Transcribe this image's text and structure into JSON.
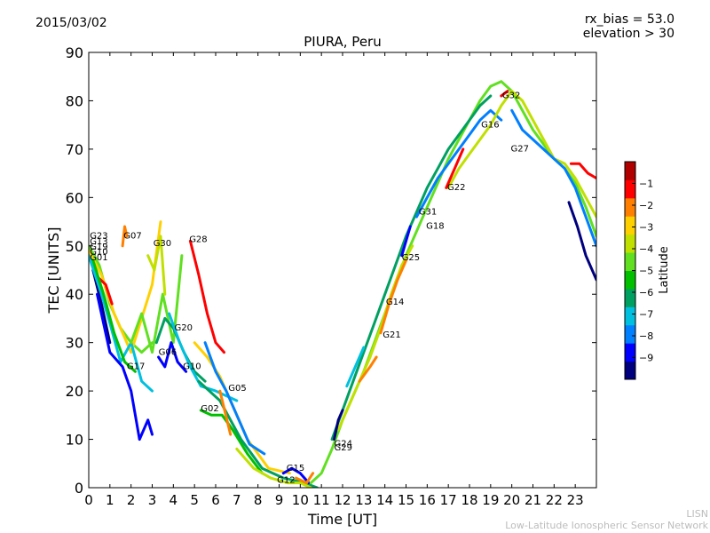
{
  "header": {
    "date": "2015/03/02",
    "rx_bias": "rx_bias = 53.0",
    "elevation": "elevation > 30"
  },
  "footer": {
    "line1": "LISN",
    "line2": "Low-Latitude Ionospheric Sensor Network"
  },
  "chart_data": {
    "type": "scatter",
    "title": "PIURA, Peru",
    "xlabel": "Time [UT]",
    "ylabel": "TEC [UNITS]",
    "xlim": [
      0,
      24
    ],
    "ylim": [
      0,
      90
    ],
    "xticks": [
      0,
      1,
      2,
      3,
      4,
      5,
      6,
      7,
      8,
      9,
      10,
      11,
      12,
      13,
      14,
      15,
      16,
      17,
      18,
      19,
      20,
      21,
      22,
      23
    ],
    "yticks": [
      0,
      10,
      20,
      30,
      40,
      50,
      60,
      70,
      80,
      90
    ],
    "colorbar": {
      "label": "Latitude",
      "ticks": [
        -1,
        -2,
        -3,
        -4,
        -5,
        -6,
        -7,
        -8,
        -9
      ],
      "range": [
        -10,
        0
      ],
      "colors": [
        "#00007f",
        "#0000ff",
        "#007fff",
        "#00c0e0",
        "#00a060",
        "#00c000",
        "#60e020",
        "#c0e000",
        "#ffd000",
        "#ff8000",
        "#ff0000",
        "#b00000"
      ]
    },
    "satellite_labels": [
      {
        "text": "G23",
        "x": 0.05,
        "y": 51.5
      },
      {
        "text": "G13",
        "x": 0.05,
        "y": 50.3
      },
      {
        "text": "G19",
        "x": 0.05,
        "y": 49.2
      },
      {
        "text": "G10",
        "x": 0.05,
        "y": 48.2
      },
      {
        "text": "G01",
        "x": 0.05,
        "y": 47.0
      },
      {
        "text": "G07",
        "x": 1.65,
        "y": 51.5
      },
      {
        "text": "G30",
        "x": 3.05,
        "y": 50.0
      },
      {
        "text": "G28",
        "x": 4.75,
        "y": 50.8
      },
      {
        "text": "G20",
        "x": 4.05,
        "y": 32.5
      },
      {
        "text": "G06",
        "x": 3.3,
        "y": 27.5
      },
      {
        "text": "G10",
        "x": 4.45,
        "y": 24.5
      },
      {
        "text": "G17",
        "x": 1.8,
        "y": 24.5
      },
      {
        "text": "G05",
        "x": 6.6,
        "y": 20.0
      },
      {
        "text": "G02",
        "x": 5.3,
        "y": 15.8
      },
      {
        "text": "G15",
        "x": 9.35,
        "y": 3.5
      },
      {
        "text": "G12",
        "x": 8.9,
        "y": 1.0
      },
      {
        "text": "G24",
        "x": 11.6,
        "y": 8.5
      },
      {
        "text": "G29",
        "x": 11.6,
        "y": 7.7
      },
      {
        "text": "G21",
        "x": 13.9,
        "y": 31.0
      },
      {
        "text": "G14",
        "x": 14.05,
        "y": 37.8
      },
      {
        "text": "G25",
        "x": 14.8,
        "y": 47.0
      },
      {
        "text": "G18",
        "x": 15.95,
        "y": 53.5
      },
      {
        "text": "G31",
        "x": 15.6,
        "y": 56.5
      },
      {
        "text": "G22",
        "x": 16.95,
        "y": 61.5
      },
      {
        "text": "G16",
        "x": 18.55,
        "y": 74.5
      },
      {
        "text": "G32",
        "x": 19.55,
        "y": 80.5
      },
      {
        "text": "G27",
        "x": 19.95,
        "y": 69.5
      }
    ],
    "series": [
      {
        "lat": -4.2,
        "x": [
          0,
          0.5,
          1,
          1.5,
          2,
          2.5,
          3
        ],
        "y": [
          50,
          46,
          38,
          33,
          30,
          28,
          30
        ]
      },
      {
        "lat": -3.2,
        "x": [
          0,
          0.6,
          1.2,
          2,
          3,
          3.4
        ],
        "y": [
          49,
          44,
          36,
          28,
          42,
          55
        ]
      },
      {
        "lat": -1.5,
        "x": [
          0.3,
          0.8,
          1.1
        ],
        "y": [
          44,
          42,
          38
        ]
      },
      {
        "lat": -1.8,
        "x": [
          1.6,
          1.7,
          1.8
        ],
        "y": [
          50,
          54,
          52
        ]
      },
      {
        "lat": -9.3,
        "x": [
          0.2,
          0.6,
          1.0
        ],
        "y": [
          45,
          38,
          30
        ]
      },
      {
        "lat": -7.2,
        "x": [
          0,
          0.6,
          1.0,
          1.5,
          2,
          2.5,
          3
        ],
        "y": [
          48,
          40,
          34,
          26,
          30,
          22,
          20
        ]
      },
      {
        "lat": -8.4,
        "x": [
          0.4,
          1,
          1.6,
          2,
          2.4,
          2.8,
          3
        ],
        "y": [
          40,
          28,
          25,
          20,
          10,
          14,
          11
        ]
      },
      {
        "lat": -5.5,
        "x": [
          0.2,
          0.7,
          1.2,
          1.7,
          2.2
        ],
        "y": [
          47,
          40,
          32,
          26,
          24
        ]
      },
      {
        "lat": -4.8,
        "x": [
          2,
          2.5,
          3,
          3.5,
          4,
          4.4
        ],
        "y": [
          30,
          36,
          28,
          40,
          30,
          48
        ]
      },
      {
        "lat": -6.2,
        "x": [
          3.2,
          3.6,
          4,
          4.5,
          5,
          5.5
        ],
        "y": [
          30,
          35,
          33,
          28,
          24,
          22
        ]
      },
      {
        "lat": -3.5,
        "x": [
          2.8,
          3.1,
          3.4,
          3.6
        ],
        "y": [
          48,
          45,
          52,
          40
        ]
      },
      {
        "lat": -7.5,
        "x": [
          3.8,
          4.3,
          4.8,
          5.3,
          6,
          7
        ],
        "y": [
          36,
          30,
          25,
          21,
          20,
          18
        ]
      },
      {
        "lat": -8.8,
        "x": [
          3.3,
          3.6,
          3.9,
          4.2,
          4.6
        ],
        "y": [
          27,
          25,
          30,
          26,
          24
        ]
      },
      {
        "lat": -1.2,
        "x": [
          4.8,
          5.2,
          5.6,
          6,
          6.4
        ],
        "y": [
          51,
          44,
          36,
          30,
          28
        ]
      },
      {
        "lat": -2.8,
        "x": [
          5,
          5.6,
          6.2,
          6.8,
          7.5,
          8.5,
          9.5
        ],
        "y": [
          30,
          27,
          23,
          17,
          10,
          4,
          3
        ]
      },
      {
        "lat": -5.6,
        "x": [
          5.3,
          5.8,
          6.3,
          6.8,
          7.5,
          8.2
        ],
        "y": [
          16,
          15,
          15,
          12,
          7,
          3
        ]
      },
      {
        "lat": -8.2,
        "x": [
          5.5,
          6,
          6.5,
          7,
          7.6,
          8.3
        ],
        "y": [
          30,
          24,
          20,
          15,
          9,
          7
        ]
      },
      {
        "lat": -6.0,
        "x": [
          5.2,
          6.2,
          7.2,
          8.2,
          9.2,
          10.2,
          10.8
        ],
        "y": [
          22,
          18,
          10,
          4,
          2,
          1,
          0
        ]
      },
      {
        "lat": -3.8,
        "x": [
          7,
          7.8,
          8.6,
          9.4,
          10,
          10.5
        ],
        "y": [
          8,
          4,
          2,
          1,
          1,
          0
        ]
      },
      {
        "lat": -1.8,
        "x": [
          6.2,
          6.7
        ],
        "y": [
          20,
          11
        ]
      },
      {
        "lat": -9.0,
        "x": [
          9.2,
          9.6,
          10,
          10.4
        ],
        "y": [
          3,
          4,
          3,
          1
        ]
      },
      {
        "lat": -2.0,
        "x": [
          9.8,
          10.3,
          10.6
        ],
        "y": [
          2,
          1,
          3
        ]
      },
      {
        "lat": -5.0,
        "x": [
          10.5,
          11,
          11.5,
          12,
          12.5,
          13,
          13.5,
          14,
          14.5,
          15,
          15.5,
          16,
          16.5,
          17,
          17.5,
          18,
          18.5,
          19,
          19.5,
          20,
          20.5,
          21,
          21.5,
          22,
          22.5,
          23,
          23.5,
          24
        ],
        "y": [
          1,
          3,
          8,
          14,
          19,
          24,
          30,
          36,
          42,
          48,
          53,
          58,
          63,
          68,
          72,
          76,
          80,
          83,
          84,
          82,
          78,
          74,
          71,
          68,
          66,
          63,
          58,
          52
        ]
      },
      {
        "lat": -6.4,
        "x": [
          11.5,
          12,
          12.5,
          13,
          13.5,
          14,
          14.5,
          15,
          15.5,
          16,
          16.5,
          17,
          17.5,
          18,
          18.5,
          19
        ],
        "y": [
          10,
          16,
          22,
          28,
          34,
          40,
          46,
          52,
          57,
          62,
          66,
          70,
          73,
          76,
          79,
          81
        ]
      },
      {
        "lat": -3.4,
        "x": [
          11.8,
          12.3,
          12.8,
          13.3,
          13.8,
          14.3,
          14.8,
          15.3
        ],
        "y": [
          12,
          17,
          22,
          27,
          33,
          40,
          46,
          50
        ]
      },
      {
        "lat": -8.0,
        "x": [
          15.5,
          16,
          16.5,
          17,
          17.5,
          18,
          18.5,
          19,
          19.5
        ],
        "y": [
          56,
          60,
          64,
          67,
          70,
          73,
          76,
          78,
          76
        ]
      },
      {
        "lat": -4.0,
        "x": [
          17,
          17.5,
          18,
          18.5,
          19,
          19.5,
          20,
          20.5,
          21,
          21.5,
          22,
          22.5,
          23,
          23.5,
          24
        ],
        "y": [
          62,
          66,
          69,
          72,
          75,
          79,
          82,
          80,
          76,
          72,
          68,
          67,
          64,
          60,
          56
        ]
      },
      {
        "lat": -7.8,
        "x": [
          20,
          20.5,
          21,
          21.5,
          22,
          22.5,
          23,
          23.5,
          24
        ],
        "y": [
          78,
          74,
          72,
          70,
          68,
          66,
          62,
          56,
          50
        ]
      },
      {
        "lat": -9.2,
        "x": [
          22.7,
          23.1,
          23.5,
          24
        ],
        "y": [
          59,
          54,
          48,
          43
        ]
      },
      {
        "lat": -1.6,
        "x": [
          22.8,
          23.2,
          23.6,
          24
        ],
        "y": [
          67,
          67,
          65,
          64
        ]
      },
      {
        "lat": -2.4,
        "x": [
          13.8,
          14.2,
          14.6,
          15.0
        ],
        "y": [
          32,
          38,
          43,
          47
        ]
      },
      {
        "lat": -9.0,
        "x": [
          14.8,
          15.2
        ],
        "y": [
          48,
          54
        ]
      },
      {
        "lat": -1.4,
        "x": [
          16.9,
          17.3,
          17.7
        ],
        "y": [
          62,
          66,
          70
        ]
      },
      {
        "lat": -9.4,
        "x": [
          11.6,
          11.8,
          12.0
        ],
        "y": [
          10,
          14,
          16
        ]
      },
      {
        "lat": -7.0,
        "x": [
          12.2,
          12.6,
          13.0
        ],
        "y": [
          21,
          25,
          29
        ]
      },
      {
        "lat": -1.8,
        "x": [
          12.8,
          13.3,
          13.6
        ],
        "y": [
          22,
          25,
          27
        ]
      },
      {
        "lat": -1.6,
        "x": [
          19.5,
          19.8
        ],
        "y": [
          81,
          82
        ]
      }
    ]
  }
}
